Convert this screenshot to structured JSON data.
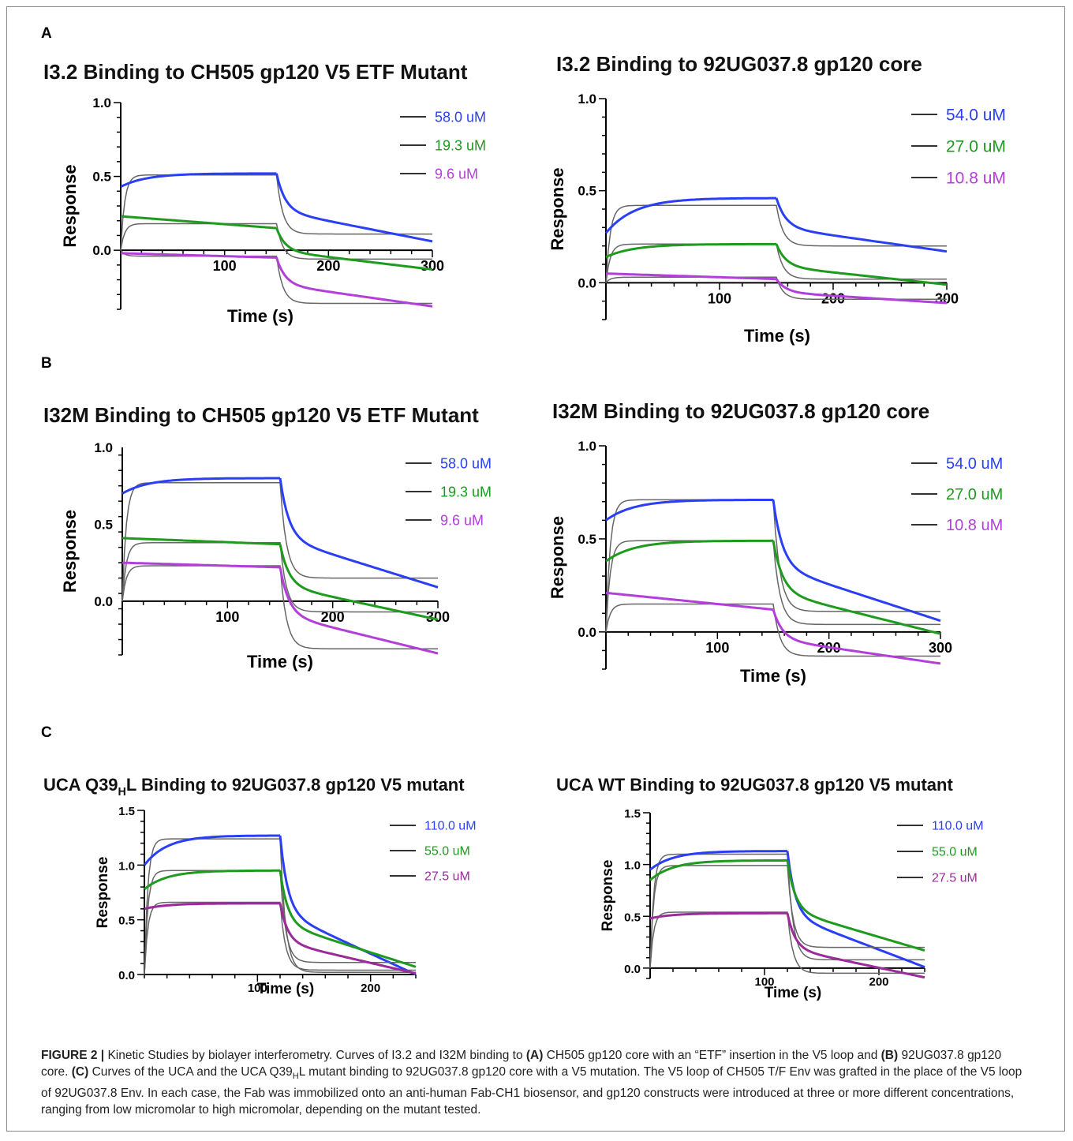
{
  "panels": {
    "a": "A",
    "b": "B",
    "c": "C"
  },
  "caption": {
    "label": "FIGURE 2 |",
    "t1": " Kinetic Studies by biolayer interferometry. Curves of I3.2 and I32M binding to ",
    "ref_a": "(A)",
    "t2": " CH505 gp120 core with an “ETF” insertion in the V5 loop and ",
    "ref_b": "(B)",
    "t3": " 92UG037.8 gp120 core. ",
    "ref_c": "(C)",
    "t4": " Curves of the UCA and the UCA Q39",
    "t4_sub": "H",
    "t5": "L mutant binding to 92UG037.8 gp120 core with a V5 mutation. The V5 loop of CH505 T/F Env was grafted in the place of the V5 loop of 92UG037.8 Env. In each case, the Fab was immobilized onto an anti-human Fab-CH1 biosensor, and gp120 constructs were introduced at three or more different concentrations, ranging from low micromolar to high micromolar, depending on the mutant tested."
  },
  "colors": {
    "blue": "#2a3ff5",
    "green": "#1e9a1e",
    "purple": "#b23fd9",
    "fit": "#666666"
  },
  "chart_data": [
    {
      "type": "line",
      "title": "I3.2 Binding to CH505 gp120 V5 ETF Mutant",
      "xlabel": "Time (s)",
      "ylabel": "Response",
      "xlim": [
        0,
        300
      ],
      "ylim": [
        -0.4,
        1.0
      ],
      "xticks": [
        100,
        200,
        300
      ],
      "yticks": [
        0.0,
        0.5,
        1.0
      ],
      "x_assoc_end": 150,
      "series": [
        {
          "name": "58.0 uM",
          "color": "#2a3ff5",
          "y_start": 0.43,
          "y_plateau": 0.52,
          "y_end": 0.06,
          "fit_plateau": 0.51,
          "fit_end": 0.11
        },
        {
          "name": "19.3 uM",
          "color": "#1e9a1e",
          "y_start": 0.23,
          "y_plateau": 0.15,
          "y_end": -0.13,
          "fit_plateau": 0.18,
          "fit_end": -0.06
        },
        {
          "name": "9.6 uM",
          "color": "#b23fd9",
          "y_start": -0.02,
          "y_plateau": -0.05,
          "y_end": -0.38,
          "fit_plateau": -0.04,
          "fit_end": -0.36
        }
      ]
    },
    {
      "type": "line",
      "title": "I3.2 Binding to 92UG037.8 gp120 core",
      "xlabel": "Time (s)",
      "ylabel": "Response",
      "xlim": [
        0,
        300
      ],
      "ylim": [
        -0.2,
        1.0
      ],
      "xticks": [
        100,
        200,
        300
      ],
      "yticks": [
        0.0,
        0.5,
        1.0
      ],
      "x_assoc_end": 150,
      "series": [
        {
          "name": "54.0 uM",
          "color": "#2a3ff5",
          "y_start": 0.27,
          "y_plateau": 0.46,
          "y_end": 0.17,
          "fit_plateau": 0.42,
          "fit_end": 0.2
        },
        {
          "name": "27.0 uM",
          "color": "#1e9a1e",
          "y_start": 0.14,
          "y_plateau": 0.21,
          "y_end": -0.01,
          "fit_plateau": 0.21,
          "fit_end": 0.02
        },
        {
          "name": "10.8 uM",
          "color": "#b23fd9",
          "y_start": 0.05,
          "y_plateau": 0.02,
          "y_end": -0.11,
          "fit_plateau": 0.03,
          "fit_end": -0.09
        }
      ]
    },
    {
      "type": "line",
      "title": "I32M Binding to CH505 gp120 V5 ETF Mutant",
      "xlabel": "Time (s)",
      "ylabel": "Response",
      "xlim": [
        0,
        300
      ],
      "ylim": [
        -0.35,
        1.0
      ],
      "xticks": [
        100,
        200,
        300
      ],
      "yticks": [
        0.0,
        0.5,
        1.0
      ],
      "x_assoc_end": 150,
      "series": [
        {
          "name": "58.0 uM",
          "color": "#2a3ff5",
          "y_start": 0.7,
          "y_plateau": 0.8,
          "y_end": 0.09,
          "fit_plateau": 0.77,
          "fit_end": 0.15
        },
        {
          "name": "19.3 uM",
          "color": "#1e9a1e",
          "y_start": 0.41,
          "y_plateau": 0.37,
          "y_end": -0.12,
          "fit_plateau": 0.38,
          "fit_end": -0.07
        },
        {
          "name": "9.6 uM",
          "color": "#b23fd9",
          "y_start": 0.25,
          "y_plateau": 0.22,
          "y_end": -0.34,
          "fit_plateau": 0.23,
          "fit_end": -0.31
        }
      ]
    },
    {
      "type": "line",
      "title": "I32M Binding to 92UG037.8 gp120 core",
      "xlabel": "Time (s)",
      "ylabel": "Response",
      "xlim": [
        0,
        300
      ],
      "ylim": [
        -0.2,
        1.0
      ],
      "xticks": [
        100,
        200,
        300
      ],
      "yticks": [
        0.0,
        0.5,
        1.0
      ],
      "x_assoc_end": 150,
      "series": [
        {
          "name": "54.0 uM",
          "color": "#2a3ff5",
          "y_start": 0.6,
          "y_plateau": 0.71,
          "y_end": 0.06,
          "fit_plateau": 0.71,
          "fit_end": 0.11
        },
        {
          "name": "27.0 uM",
          "color": "#1e9a1e",
          "y_start": 0.38,
          "y_plateau": 0.49,
          "y_end": -0.01,
          "fit_plateau": 0.49,
          "fit_end": 0.04
        },
        {
          "name": "10.8 uM",
          "color": "#b23fd9",
          "y_start": 0.21,
          "y_plateau": 0.12,
          "y_end": -0.17,
          "fit_plateau": 0.15,
          "fit_end": -0.13
        }
      ]
    },
    {
      "type": "line",
      "title": "UCA Q39HL  Binding to 92UG037.8 gp120 V5 mutant",
      "xlabel": "Time (s)",
      "ylabel": "Response",
      "xlim": [
        0,
        240
      ],
      "ylim": [
        0.0,
        1.5
      ],
      "xticks": [
        100,
        200
      ],
      "yticks": [
        0.0,
        0.5,
        1.0,
        1.5
      ],
      "x_assoc_end": 120,
      "series": [
        {
          "name": "110.0 uM",
          "color": "#2a3ff5",
          "y_start": 1.0,
          "y_plateau": 1.27,
          "y_end": 0.0,
          "fit_plateau": 1.24,
          "fit_end": 0.02
        },
        {
          "name": "55.0 uM",
          "color": "#1e9a1e",
          "y_start": 0.78,
          "y_plateau": 0.95,
          "y_end": 0.07,
          "fit_plateau": 0.95,
          "fit_end": 0.11
        },
        {
          "name": "27.5 uM",
          "color": "#9b2a9b",
          "y_start": 0.6,
          "y_plateau": 0.65,
          "y_end": 0.01,
          "fit_plateau": 0.66,
          "fit_end": 0.04
        }
      ]
    },
    {
      "type": "line",
      "title": "UCA WT Binding to 92UG037.8 gp120 V5 mutant",
      "xlabel": "Time (s)",
      "ylabel": "Response",
      "xlim": [
        0,
        240
      ],
      "ylim": [
        -0.1,
        1.5
      ],
      "xticks": [
        100,
        200
      ],
      "yticks": [
        0.0,
        0.5,
        1.0,
        1.5
      ],
      "x_assoc_end": 120,
      "series": [
        {
          "name": "110.0 uM",
          "color": "#2a3ff5",
          "y_start": 0.95,
          "y_plateau": 1.13,
          "y_end": 0.01,
          "fit_plateau": 1.1,
          "fit_end": 0.08
        },
        {
          "name": "55.0 uM",
          "color": "#1e9a1e",
          "y_start": 0.85,
          "y_plateau": 1.04,
          "y_end": 0.17,
          "fit_plateau": 0.99,
          "fit_end": 0.2
        },
        {
          "name": "27.5 uM",
          "color": "#9b2a9b",
          "y_start": 0.48,
          "y_plateau": 0.53,
          "y_end": -0.09,
          "fit_plateau": 0.54,
          "fit_end": -0.05
        }
      ]
    }
  ]
}
